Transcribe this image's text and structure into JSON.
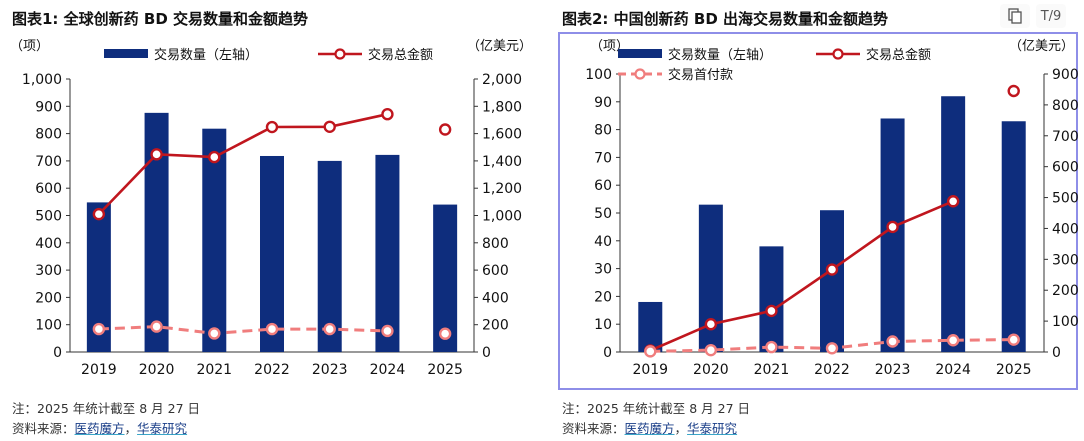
{
  "toolbar": {
    "copy_icon": "copy-icon",
    "page_indicator": "T/9"
  },
  "colors": {
    "bar": "#0e2d7d",
    "line": "#c0161e",
    "dashed": "#f07d7d",
    "axis": "#333333"
  },
  "charts_meta": [
    {
      "fig_title": "图表1:  全球创新药 BD 交易数量和金额趋势",
      "note": "注：2025 年统计截至 8 月 27 日",
      "source_prefix": "资料来源：",
      "source_link1": "医药魔方",
      "source_sep": "，",
      "source_link2": "华泰研究"
    },
    {
      "fig_title": "图表2:  中国创新药 BD 出海交易数量和金额趋势",
      "note": "注：2025 年统计截至 8 月 27 日",
      "source_prefix": "资料来源：",
      "source_link1": "医药魔方",
      "source_sep": "，",
      "source_link2": "华泰研究"
    }
  ],
  "chart_data": [
    {
      "type": "bar",
      "categories": [
        "2019",
        "2020",
        "2021",
        "2022",
        "2023",
        "2024",
        "2025"
      ],
      "ylabel_left": "（项）",
      "ylabel_right": "（亿美元）",
      "ylim_left": [
        0,
        1000
      ],
      "ylim_right": [
        0,
        2000
      ],
      "yticks_left": [
        "0",
        "100",
        "200",
        "300",
        "400",
        "500",
        "600",
        "700",
        "800",
        "900",
        "1,000"
      ],
      "yticks_right": [
        "0",
        "200",
        "400",
        "600",
        "800",
        "1,000",
        "1,200",
        "1,400",
        "1,600",
        "1,800",
        "2,000"
      ],
      "legend": [
        "交易数量（左轴）",
        "交易总金额"
      ],
      "series": [
        {
          "name": "交易数量（左轴）",
          "kind": "bar",
          "axis": "left",
          "values": [
            548,
            876,
            818,
            718,
            700,
            722,
            540
          ]
        },
        {
          "name": "交易总金额",
          "kind": "line-marker",
          "axis": "right",
          "values": [
            1010,
            1448,
            1428,
            1648,
            1650,
            1742,
            1630
          ],
          "connect_last": false
        },
        {
          "name": "",
          "kind": "dashed-marker",
          "axis": "right",
          "values": [
            168,
            186,
            136,
            168,
            168,
            154,
            134
          ],
          "connect_last": false
        }
      ],
      "grid": false
    },
    {
      "type": "bar",
      "categories": [
        "2019",
        "2020",
        "2021",
        "2022",
        "2023",
        "2024",
        "2025"
      ],
      "ylabel_left": "（项）",
      "ylabel_right": "（亿美元）",
      "ylim_left": [
        0,
        100
      ],
      "ylim_right": [
        0,
        900
      ],
      "yticks_left": [
        "0",
        "10",
        "20",
        "30",
        "40",
        "50",
        "60",
        "70",
        "80",
        "90",
        "100"
      ],
      "yticks_right": [
        "0",
        "100",
        "200",
        "300",
        "400",
        "500",
        "600",
        "700",
        "800",
        "900"
      ],
      "legend": [
        "交易数量（左轴）",
        "交易总金额",
        "交易首付款"
      ],
      "series": [
        {
          "name": "交易数量（左轴）",
          "kind": "bar",
          "axis": "left",
          "values": [
            18,
            53,
            38,
            51,
            84,
            92,
            83
          ]
        },
        {
          "name": "交易总金额",
          "kind": "line-marker",
          "axis": "right",
          "values": [
            5,
            90,
            133,
            267,
            405,
            488,
            845
          ],
          "connect_last": false
        },
        {
          "name": "交易首付款",
          "kind": "dashed-marker",
          "axis": "right",
          "values": [
            2,
            6,
            16,
            12,
            34,
            38,
            40
          ],
          "connect_last": true
        }
      ],
      "grid": false
    }
  ]
}
